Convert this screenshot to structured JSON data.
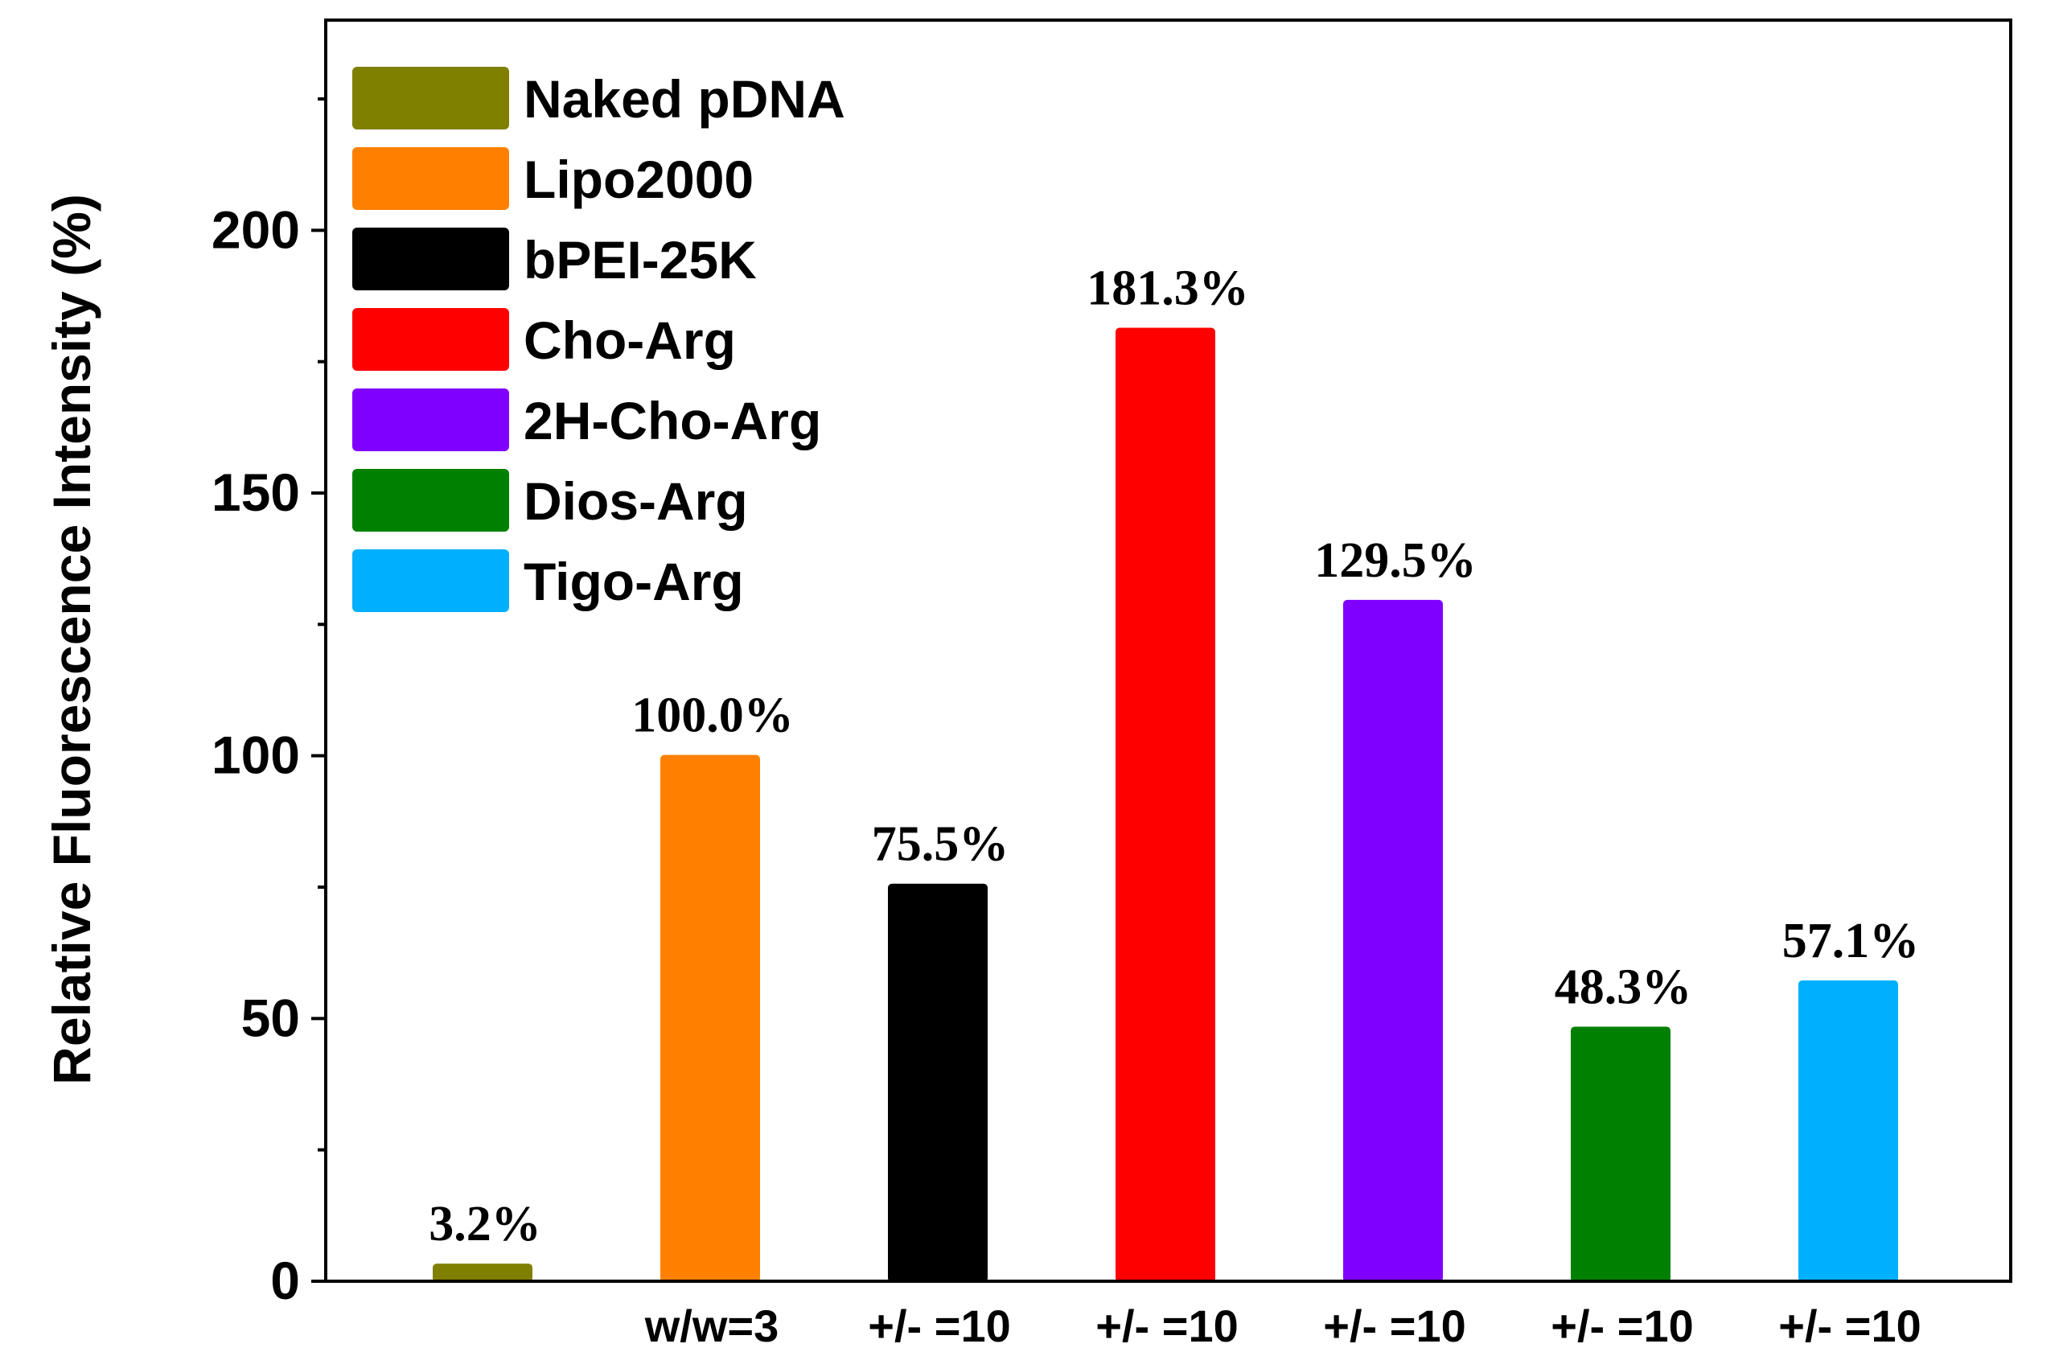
{
  "chart_data": {
    "type": "bar",
    "title": "",
    "xlabel": "",
    "ylabel": "Relative Fluorescence Intensity (%)",
    "ylim": [
      0,
      240
    ],
    "yticks": [
      0,
      50,
      100,
      150,
      200
    ],
    "grid": false,
    "legend_position": "top-left",
    "categories": [
      "",
      "w/w=3",
      "+/- =10",
      "+/- =10",
      "+/- =10",
      "+/- =10",
      "+/- =10"
    ],
    "series": [
      {
        "name": "Naked pDNA",
        "color": "#808000",
        "value": 3.2,
        "label": "3.2%"
      },
      {
        "name": "Lipo2000",
        "color": "#FF8000",
        "value": 100.0,
        "label": "100.0%"
      },
      {
        "name": "bPEI-25K",
        "color": "#000000",
        "value": 75.5,
        "label": "75.5%"
      },
      {
        "name": "Cho-Arg",
        "color": "#FF0000",
        "value": 181.3,
        "label": "181.3%"
      },
      {
        "name": "2H-Cho-Arg",
        "color": "#8000FF",
        "value": 129.5,
        "label": "129.5%"
      },
      {
        "name": "Dios-Arg",
        "color": "#008000",
        "value": 48.3,
        "label": "48.3%"
      },
      {
        "name": "Tigo-Arg",
        "color": "#00B0FF",
        "value": 57.1,
        "label": "57.1%"
      }
    ]
  }
}
